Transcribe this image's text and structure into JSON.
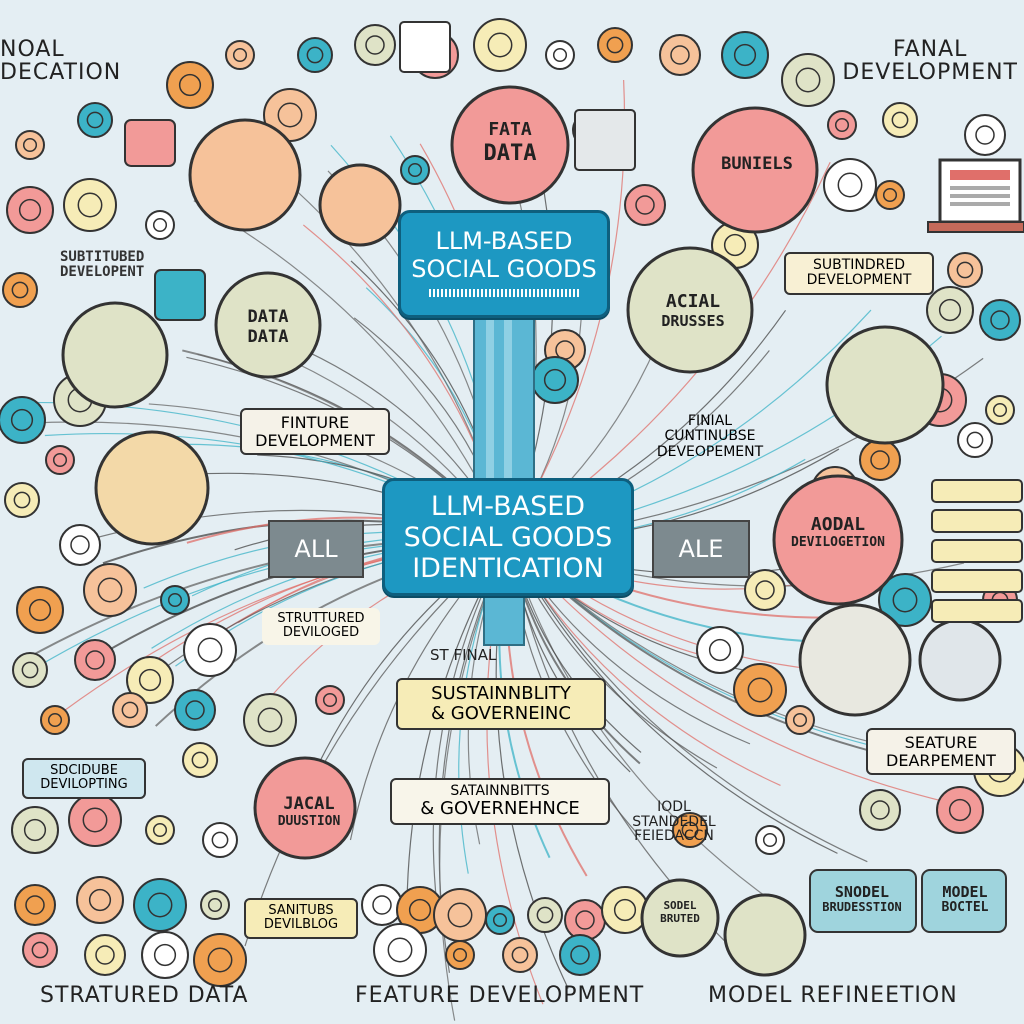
{
  "corners": {
    "top_left": [
      "NOAL",
      "DECATION"
    ],
    "top_right": [
      "FANAL",
      "DEVELOPMENT"
    ],
    "bottom_left": "STRATURED DATA",
    "bottom_center": "FEATURE DEVELOPMENT",
    "bottom_right": "MODEL REFINEETION"
  },
  "top_box": {
    "title_line1": "LLM-BASED",
    "title_line2": "SOCIAL GOODS"
  },
  "center_box": {
    "line1": "LLM-BASED",
    "line2": "SOCIAL GOODS",
    "line3": "IDENTICATION"
  },
  "side_boxes": {
    "left": "ALL",
    "right": "ALE"
  },
  "bubbles": {
    "top_data": [
      "FATA",
      "DATA"
    ],
    "buniels": "BUNIELS",
    "data_left": [
      "DATA",
      "DATA"
    ],
    "acial": [
      "ACIAL",
      "DRUSSES"
    ],
    "aodal": [
      "AODAL",
      "DEVILOGETION"
    ],
    "jacal": [
      "JACAL",
      "DUUSTION"
    ],
    "sodel_small": [
      "SODEL",
      "BRUTED"
    ],
    "sodel_mid": [
      "SNODEL",
      "BRUDESSTION"
    ],
    "model_right": [
      "MODEL",
      "BOCTEL"
    ]
  },
  "tags": {
    "finture_dev": [
      "FINTURE",
      "DEVELOPMENT"
    ],
    "substitubed_left": [
      "SUBTITUBED",
      "DEVELOPENT"
    ],
    "substitubed_right": [
      "SUBTINDRED",
      "DEVELOPMENT"
    ],
    "final_cont": [
      "FINIAL",
      "CUNTINUBSE",
      "DEVEOPEMENT"
    ],
    "structured_mid": [
      "STRUTTURED",
      "DEVILOGED"
    ],
    "st_final": "ST FINAL",
    "sustain_1": [
      "SUSTAINNBLITY",
      "& GOVERNEINC"
    ],
    "sustain_2": [
      "SATAINNBITTS",
      "& GOVERNEHNCE"
    ],
    "feature_dev_right": [
      "SEATURE",
      "DEARPEMENT"
    ],
    "sdcidube": [
      "SDCIDUBE",
      "DEVILOPTING"
    ],
    "model_feedback": [
      "IODL",
      "STANDEDEL",
      "FEIEDACCN"
    ],
    "sanitubs": [
      "SANITUBS",
      "DEVILBLOG"
    ]
  },
  "colors": {
    "background": "#e4eef3",
    "center_blue": "#1d98c2",
    "pink": "#f29a98",
    "peach": "#f6c29a",
    "sage": "#dfe3c7",
    "teal": "#3cb3c7",
    "yellow": "#f6ecb7",
    "orange": "#f0a050"
  }
}
